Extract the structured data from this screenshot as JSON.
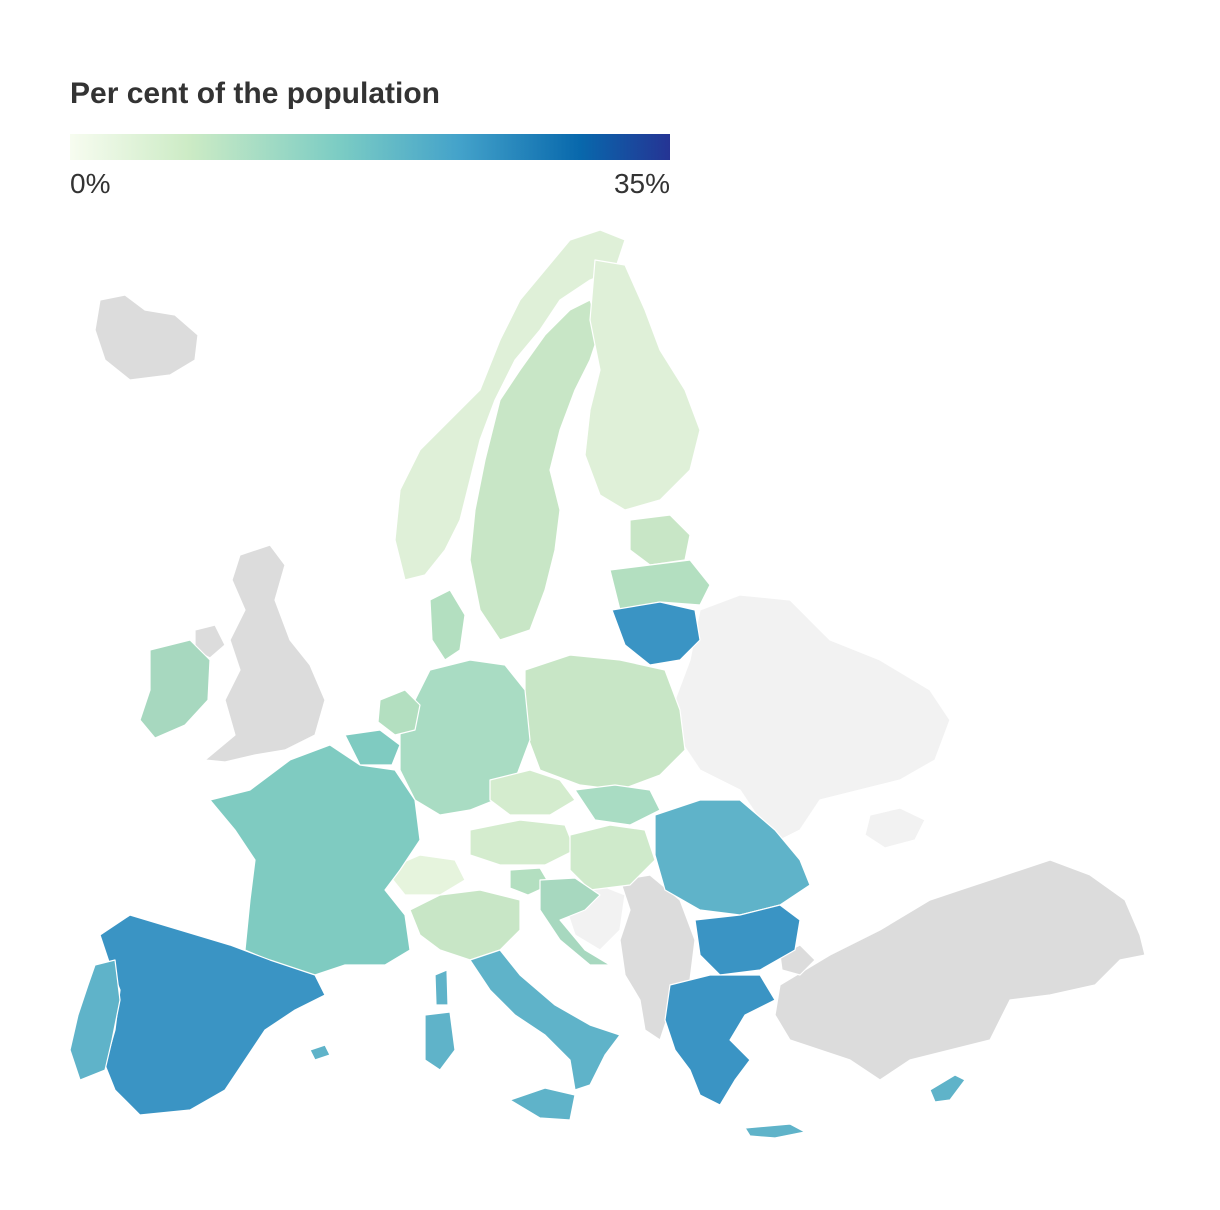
{
  "legend": {
    "title": "Per cent of the population",
    "min_label": "0%",
    "max_label": "35%",
    "range": [
      0,
      35
    ],
    "gradient": [
      "#f7fcf0",
      "#ccebc5",
      "#7bccc4",
      "#43a2ca",
      "#0868ac",
      "#253494"
    ]
  },
  "colors": {
    "no_data_eu": "#dcdcdc",
    "outside_scope": "#f2f2f2",
    "border": "#ffffff"
  }
}
